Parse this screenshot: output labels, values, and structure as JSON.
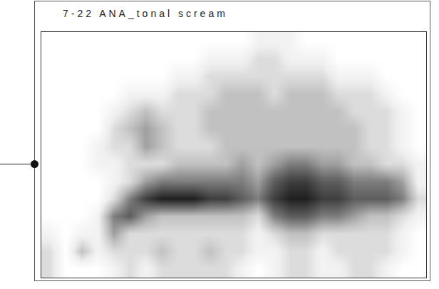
{
  "chart_data": {
    "type": "heatmap",
    "title": "7-22 ANA_tonal scream",
    "tick_labels": false,
    "grid": false,
    "zlim": [
      0,
      9
    ],
    "z": [
      [
        0,
        0,
        0,
        0,
        0,
        0,
        0,
        0,
        0,
        0,
        0,
        0,
        0,
        1,
        1,
        1,
        0,
        0,
        0,
        0,
        0,
        0,
        0,
        0
      ],
      [
        0,
        0,
        0,
        0,
        0,
        0,
        0,
        0,
        0,
        0,
        1,
        1,
        1,
        2,
        2,
        1,
        1,
        1,
        0,
        0,
        0,
        0,
        0,
        0
      ],
      [
        0,
        0,
        0,
        0,
        0,
        0,
        0,
        0,
        1,
        1,
        2,
        2,
        2,
        2,
        2,
        2,
        2,
        2,
        1,
        1,
        1,
        0,
        0,
        0
      ],
      [
        0,
        0,
        0,
        0,
        0,
        1,
        1,
        1,
        2,
        2,
        2,
        3,
        3,
        3,
        2,
        3,
        3,
        3,
        2,
        2,
        2,
        1,
        0,
        0
      ],
      [
        0,
        0,
        0,
        0,
        1,
        2,
        3,
        2,
        2,
        2,
        3,
        3,
        3,
        3,
        3,
        3,
        3,
        3,
        3,
        2,
        2,
        2,
        1,
        0
      ],
      [
        0,
        0,
        0,
        0,
        2,
        3,
        4,
        3,
        2,
        2,
        3,
        3,
        3,
        3,
        3,
        3,
        3,
        3,
        3,
        3,
        2,
        2,
        1,
        0
      ],
      [
        0,
        0,
        0,
        1,
        2,
        2,
        4,
        3,
        2,
        2,
        2,
        3,
        3,
        3,
        3,
        3,
        3,
        3,
        3,
        3,
        2,
        2,
        1,
        0
      ],
      [
        0,
        0,
        0,
        1,
        1,
        2,
        2,
        2,
        3,
        3,
        3,
        3,
        4,
        3,
        4,
        5,
        5,
        4,
        4,
        3,
        3,
        2,
        2,
        1
      ],
      [
        0,
        0,
        0,
        0,
        1,
        2,
        4,
        5,
        5,
        5,
        5,
        5,
        5,
        4,
        6,
        7,
        7,
        6,
        6,
        5,
        5,
        5,
        4,
        1
      ],
      [
        0,
        0,
        0,
        0,
        2,
        5,
        7,
        8,
        8,
        8,
        7,
        7,
        6,
        5,
        7,
        8,
        8,
        7,
        7,
        6,
        6,
        6,
        5,
        2
      ],
      [
        0,
        0,
        0,
        1,
        5,
        6,
        4,
        3,
        3,
        3,
        3,
        3,
        3,
        2,
        5,
        6,
        6,
        5,
        5,
        4,
        3,
        3,
        2,
        1
      ],
      [
        1,
        0,
        1,
        1,
        4,
        2,
        2,
        2,
        2,
        2,
        2,
        2,
        2,
        1,
        2,
        3,
        3,
        2,
        2,
        2,
        2,
        2,
        1,
        0
      ],
      [
        2,
        0,
        3,
        1,
        2,
        2,
        2,
        3,
        2,
        2,
        3,
        2,
        2,
        1,
        1,
        2,
        2,
        1,
        2,
        2,
        2,
        2,
        1,
        0
      ],
      [
        2,
        0,
        0,
        0,
        1,
        2,
        1,
        2,
        2,
        2,
        2,
        2,
        1,
        0,
        1,
        2,
        2,
        1,
        1,
        2,
        2,
        1,
        0,
        0
      ]
    ]
  }
}
